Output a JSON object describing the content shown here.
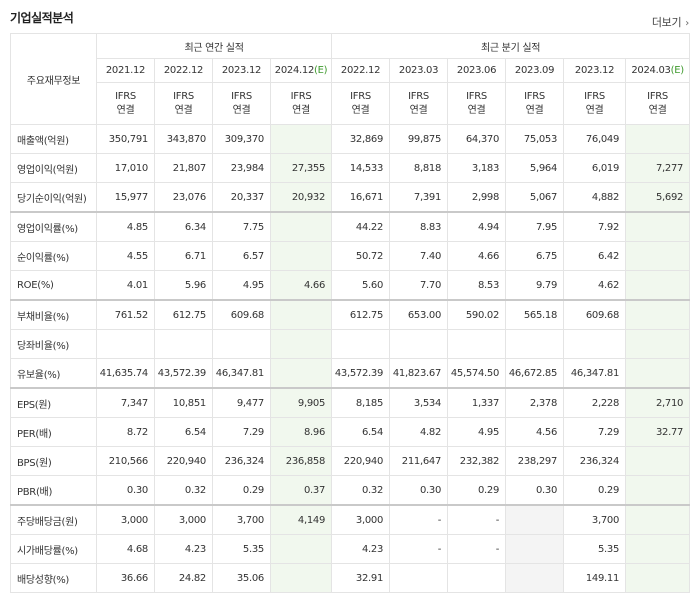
{
  "title": "기업실적분석",
  "more_label": "더보기",
  "more_icon": "chevron-right-icon",
  "header": {
    "metric_label": "주요재무정보",
    "annual_label": "최근 연간 실적",
    "quarter_label": "최근 분기 실적",
    "annual_periods": [
      {
        "label": "2021.12",
        "est": ""
      },
      {
        "label": "2022.12",
        "est": ""
      },
      {
        "label": "2023.12",
        "est": ""
      },
      {
        "label": "2024.12",
        "est": "(E)"
      }
    ],
    "quarter_periods": [
      {
        "label": "2022.12",
        "est": ""
      },
      {
        "label": "2023.03",
        "est": ""
      },
      {
        "label": "2023.06",
        "est": ""
      },
      {
        "label": "2023.09",
        "est": ""
      },
      {
        "label": "2023.12",
        "est": ""
      },
      {
        "label": "2024.03",
        "est": "(E)"
      }
    ],
    "ifrs_line1": "IFRS",
    "ifrs_line2": "연결"
  },
  "rows": [
    {
      "label": "매출액(억원)",
      "values": [
        "350,791",
        "343,870",
        "309,370",
        "",
        "32,869",
        "99,875",
        "64,370",
        "75,053",
        "76,049",
        ""
      ]
    },
    {
      "label": "영업이익(억원)",
      "values": [
        "17,010",
        "21,807",
        "23,984",
        "27,355",
        "14,533",
        "8,818",
        "3,183",
        "5,964",
        "6,019",
        "7,277"
      ]
    },
    {
      "label": "당기순이익(억원)",
      "values": [
        "15,977",
        "23,076",
        "20,337",
        "20,932",
        "16,671",
        "7,391",
        "2,998",
        "5,067",
        "4,882",
        "5,692"
      ]
    },
    {
      "label": "영업이익률(%)",
      "values": [
        "4.85",
        "6.34",
        "7.75",
        "",
        "44.22",
        "8.83",
        "4.94",
        "7.95",
        "7.92",
        ""
      ]
    },
    {
      "label": "순이익률(%)",
      "values": [
        "4.55",
        "6.71",
        "6.57",
        "",
        "50.72",
        "7.40",
        "4.66",
        "6.75",
        "6.42",
        ""
      ]
    },
    {
      "label": "ROE(%)",
      "values": [
        "4.01",
        "5.96",
        "4.95",
        "4.66",
        "5.60",
        "7.70",
        "8.53",
        "9.79",
        "4.62",
        ""
      ]
    },
    {
      "label": "부채비율(%)",
      "values": [
        "761.52",
        "612.75",
        "609.68",
        "",
        "612.75",
        "653.00",
        "590.02",
        "565.18",
        "609.68",
        ""
      ]
    },
    {
      "label": "당좌비율(%)",
      "values": [
        "",
        "",
        "",
        "",
        "",
        "",
        "",
        "",
        "",
        ""
      ]
    },
    {
      "label": "유보율(%)",
      "values": [
        "41,635.74",
        "43,572.39",
        "46,347.81",
        "",
        "43,572.39",
        "41,823.67",
        "45,574.50",
        "46,672.85",
        "46,347.81",
        ""
      ]
    },
    {
      "label": "EPS(원)",
      "values": [
        "7,347",
        "10,851",
        "9,477",
        "9,905",
        "8,185",
        "3,534",
        "1,337",
        "2,378",
        "2,228",
        "2,710"
      ]
    },
    {
      "label": "PER(배)",
      "values": [
        "8.72",
        "6.54",
        "7.29",
        "8.96",
        "6.54",
        "4.82",
        "4.95",
        "4.56",
        "7.29",
        "32.77"
      ]
    },
    {
      "label": "BPS(원)",
      "values": [
        "210,566",
        "220,940",
        "236,324",
        "236,858",
        "220,940",
        "211,647",
        "232,382",
        "238,297",
        "236,324",
        ""
      ]
    },
    {
      "label": "PBR(배)",
      "values": [
        "0.30",
        "0.32",
        "0.29",
        "0.37",
        "0.32",
        "0.30",
        "0.29",
        "0.30",
        "0.29",
        ""
      ]
    },
    {
      "label": "주당배당금(원)",
      "values": [
        "3,000",
        "3,000",
        "3,700",
        "4,149",
        "3,000",
        "-",
        "-",
        "",
        "3,700",
        ""
      ]
    },
    {
      "label": "시가배당률(%)",
      "values": [
        "4.68",
        "4.23",
        "5.35",
        "",
        "4.23",
        "-",
        "-",
        "",
        "5.35",
        ""
      ]
    },
    {
      "label": "배당성향(%)",
      "values": [
        "36.66",
        "24.82",
        "35.06",
        "",
        "32.91",
        "",
        "",
        "",
        "149.11",
        ""
      ]
    }
  ],
  "colors": {
    "ifrs": "#e8721f",
    "estimate_bg": "#f1f8ee",
    "estimate_label": "#3f9a2e",
    "border": "#e4e4e4"
  }
}
